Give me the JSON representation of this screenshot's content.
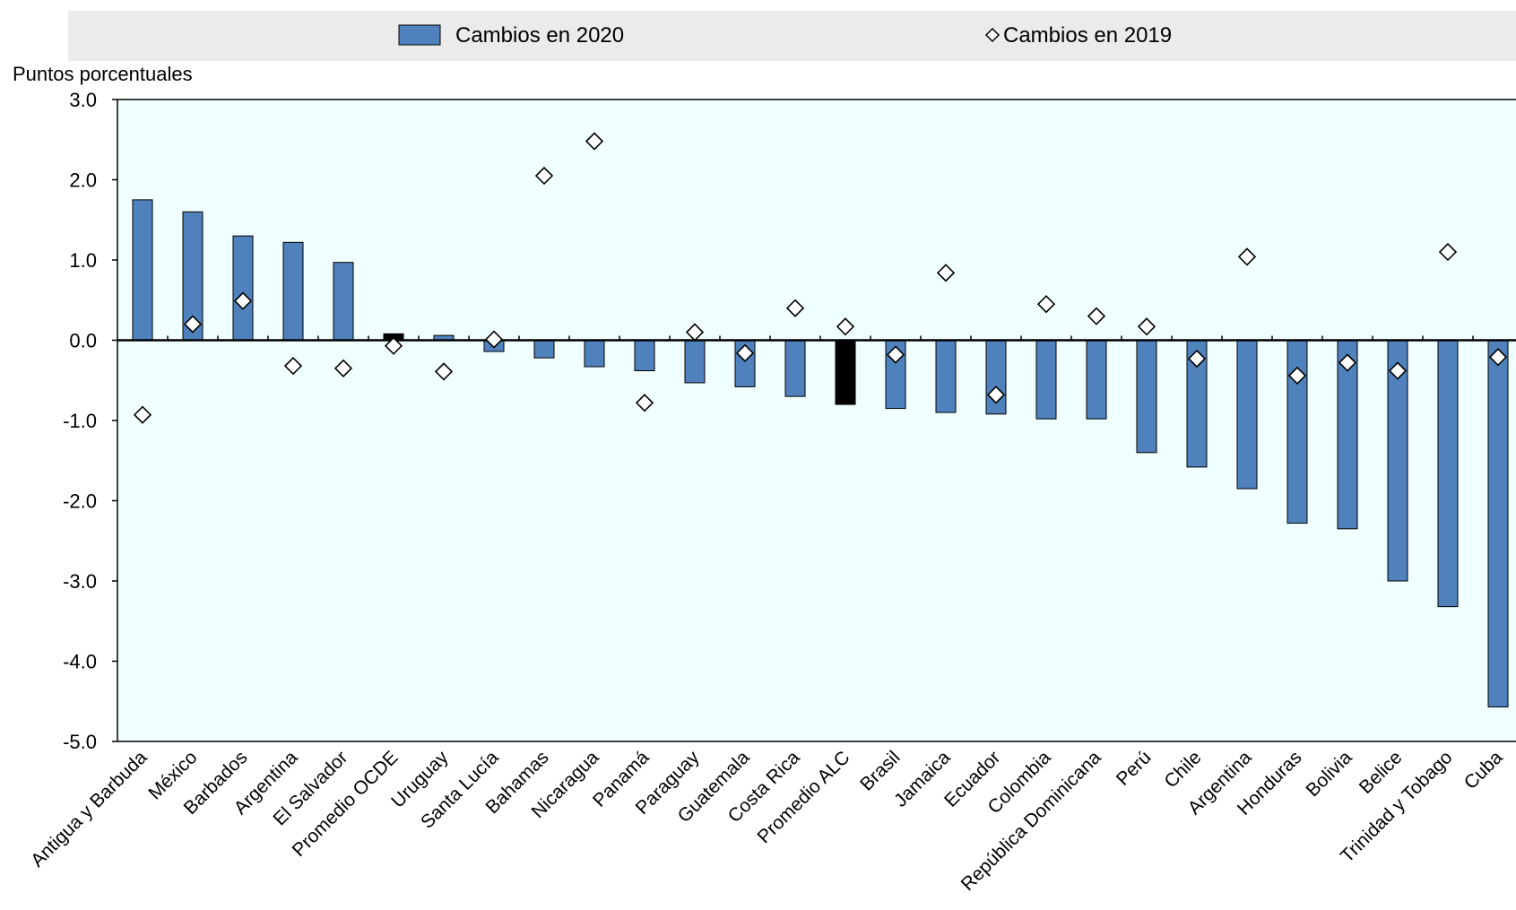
{
  "chart_data": {
    "type": "bar",
    "ylabel": "Puntos porcentuales",
    "ylim": [
      -5,
      3
    ],
    "yticks": [
      "3.0",
      "2.0",
      "1.0",
      "0.0",
      "-1.0",
      "-2.0",
      "-3.0",
      "-4.0",
      "-5.0"
    ],
    "legend_placement": "top",
    "categories": [
      "Antigua y Barbuda",
      "México",
      "Barbados",
      "Argentina",
      "El Salvador",
      "Promedio OCDE",
      "Uruguay",
      "Santa Lucía",
      "Bahamas",
      "Nicaragua",
      "Panamá",
      "Paraguay",
      "Guatemala",
      "Costa Rica",
      "Promedio ALC",
      "Brasil",
      "Jamaica",
      "Ecuador",
      "Colombia",
      "República Dominicana",
      "Perú",
      "Chile",
      "Argentina",
      "Honduras",
      "Bolivia",
      "Belice",
      "Trinidad y Tobago",
      "Cuba"
    ],
    "highlight_categories": [
      "Promedio OCDE",
      "Promedio ALC"
    ],
    "series": [
      {
        "name": "Cambios en 2020",
        "mark": "bar",
        "color": "#4f81bd",
        "values": [
          1.75,
          1.6,
          1.3,
          1.22,
          0.97,
          0.08,
          0.06,
          -0.14,
          -0.22,
          -0.33,
          -0.38,
          -0.53,
          -0.58,
          -0.7,
          -0.8,
          -0.85,
          -0.9,
          -0.92,
          -0.98,
          -0.98,
          -1.4,
          -1.58,
          -1.85,
          -2.28,
          -2.35,
          -3.0,
          -3.32,
          -4.57
        ]
      },
      {
        "name": "Cambios en 2019",
        "mark": "diamond",
        "color": "#ffffff",
        "values": [
          -0.93,
          0.2,
          0.49,
          -0.32,
          -0.35,
          -0.07,
          -0.39,
          0.01,
          2.05,
          2.48,
          -0.78,
          0.1,
          -0.16,
          0.4,
          0.17,
          -0.18,
          0.84,
          -0.68,
          0.45,
          0.3,
          0.17,
          -0.23,
          1.04,
          -0.44,
          -0.28,
          -0.38,
          1.1,
          -0.21
        ]
      }
    ],
    "colors": {
      "bar": "#4f81bd",
      "highlight_bar": "#000000",
      "plot_background": "#f0ffff",
      "legend_background": "#ebebeb"
    }
  }
}
